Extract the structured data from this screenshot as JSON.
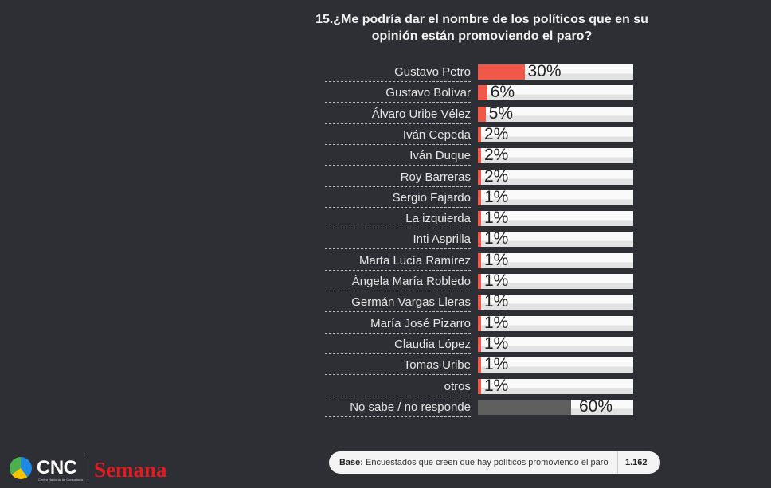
{
  "chart_data": {
    "type": "bar",
    "orientation": "horizontal",
    "title": "15.¿Me podría dar el nombre de los políticos que en su opinión están promoviendo el paro?",
    "categories": [
      "Gustavo Petro",
      "Gustavo Bolívar",
      "Álvaro Uribe Vélez",
      "Iván Cepeda",
      "Iván Duque",
      "Roy Barreras",
      "Sergio Fajardo",
      "La izquierda",
      "Inti Asprilla",
      "Marta Lucía Ramírez",
      "Ángela María Robledo",
      "Germán Vargas Lleras",
      "María José Pizarro",
      "Claudia López",
      "Tomas Uribe",
      "otros",
      "No sabe / no responde"
    ],
    "values": [
      30,
      6,
      5,
      2,
      2,
      2,
      1,
      1,
      1,
      1,
      1,
      1,
      1,
      1,
      1,
      1,
      60
    ],
    "labels": [
      "30%",
      "6%",
      "5%",
      "2%",
      "2%",
      "2%",
      "1%",
      "1%",
      "1%",
      "1%",
      "1%",
      "1%",
      "1%",
      "1%",
      "1%",
      "1%",
      "60%"
    ],
    "xlim": [
      0,
      100
    ],
    "colors": {
      "main": "#f0584a",
      "nsnr": "#5f5f5f",
      "track": "#f2f2f2"
    }
  },
  "footer": {
    "base_label": "Base:",
    "base_text": "Encuestados que creen que hay políticos promoviendo el paro",
    "base_n": "1.162",
    "logo_cnc": "CNC",
    "logo_cnc_sub": "Centro Nacional de Consultoría",
    "logo_semana": "Semana"
  }
}
